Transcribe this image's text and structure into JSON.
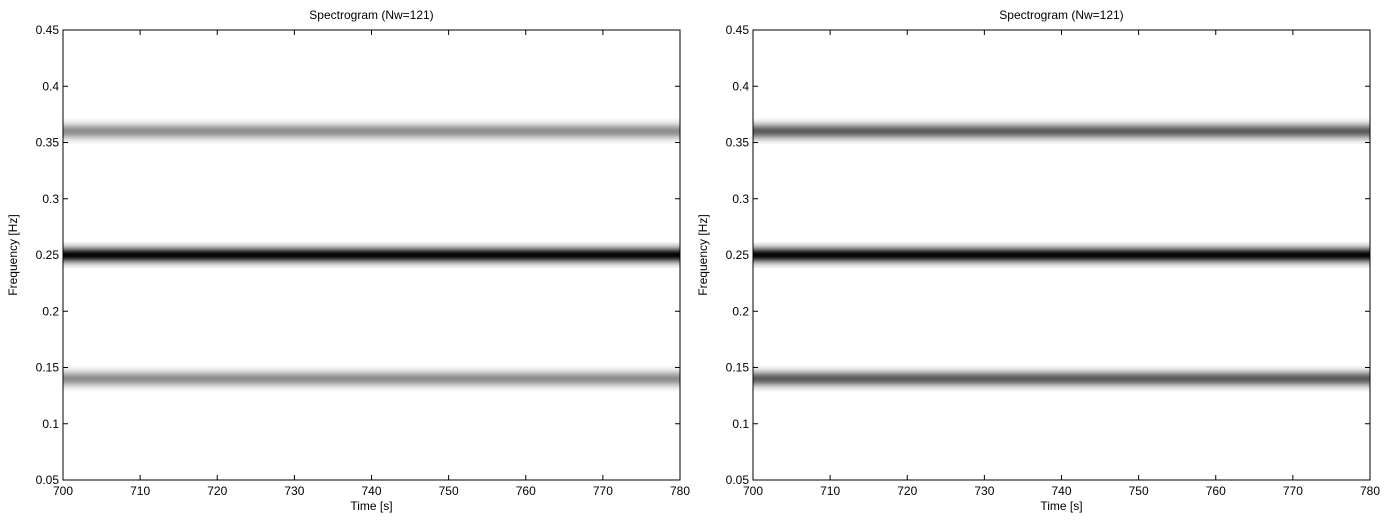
{
  "chart_data": [
    {
      "type": "heatmap",
      "title": "Spectrogram (Nw=121)",
      "xlabel": "Time [s]",
      "ylabel": "Frequency [Hz]",
      "xlim": [
        700,
        780
      ],
      "ylim": [
        0.05,
        0.45
      ],
      "xticks": [
        700,
        710,
        720,
        730,
        740,
        750,
        760,
        770,
        780
      ],
      "xtick_labels": [
        "700",
        "710",
        "720",
        "730",
        "740",
        "750",
        "760",
        "770",
        "780"
      ],
      "yticks": [
        0.05,
        0.1,
        0.15,
        0.2,
        0.25,
        0.3,
        0.35,
        0.4,
        0.45
      ],
      "ytick_labels": [
        "0.05",
        "0.1",
        "0.15",
        "0.2",
        "0.25",
        "0.3",
        "0.35",
        "0.4",
        "0.45"
      ],
      "colormap": "gray-inverted",
      "grid": false,
      "bands": [
        {
          "frequency": 0.36,
          "intensity": 0.45
        },
        {
          "frequency": 0.25,
          "intensity": 1.0
        },
        {
          "frequency": 0.14,
          "intensity": 0.45
        }
      ]
    },
    {
      "type": "heatmap",
      "title": "Spectrogram (Nw=121)",
      "xlabel": "Time [s]",
      "ylabel": "Frequency [Hz]",
      "xlim": [
        700,
        780
      ],
      "ylim": [
        0.05,
        0.45
      ],
      "xticks": [
        700,
        710,
        720,
        730,
        740,
        750,
        760,
        770,
        780
      ],
      "xtick_labels": [
        "700",
        "710",
        "720",
        "730",
        "740",
        "750",
        "760",
        "770",
        "780"
      ],
      "yticks": [
        0.05,
        0.1,
        0.15,
        0.2,
        0.25,
        0.3,
        0.35,
        0.4,
        0.45
      ],
      "ytick_labels": [
        "0.05",
        "0.1",
        "0.15",
        "0.2",
        "0.25",
        "0.3",
        "0.35",
        "0.4",
        "0.45"
      ],
      "colormap": "gray-inverted",
      "grid": false,
      "bands": [
        {
          "frequency": 0.36,
          "intensity": 0.65
        },
        {
          "frequency": 0.25,
          "intensity": 1.0
        },
        {
          "frequency": 0.14,
          "intensity": 0.65
        }
      ]
    }
  ]
}
